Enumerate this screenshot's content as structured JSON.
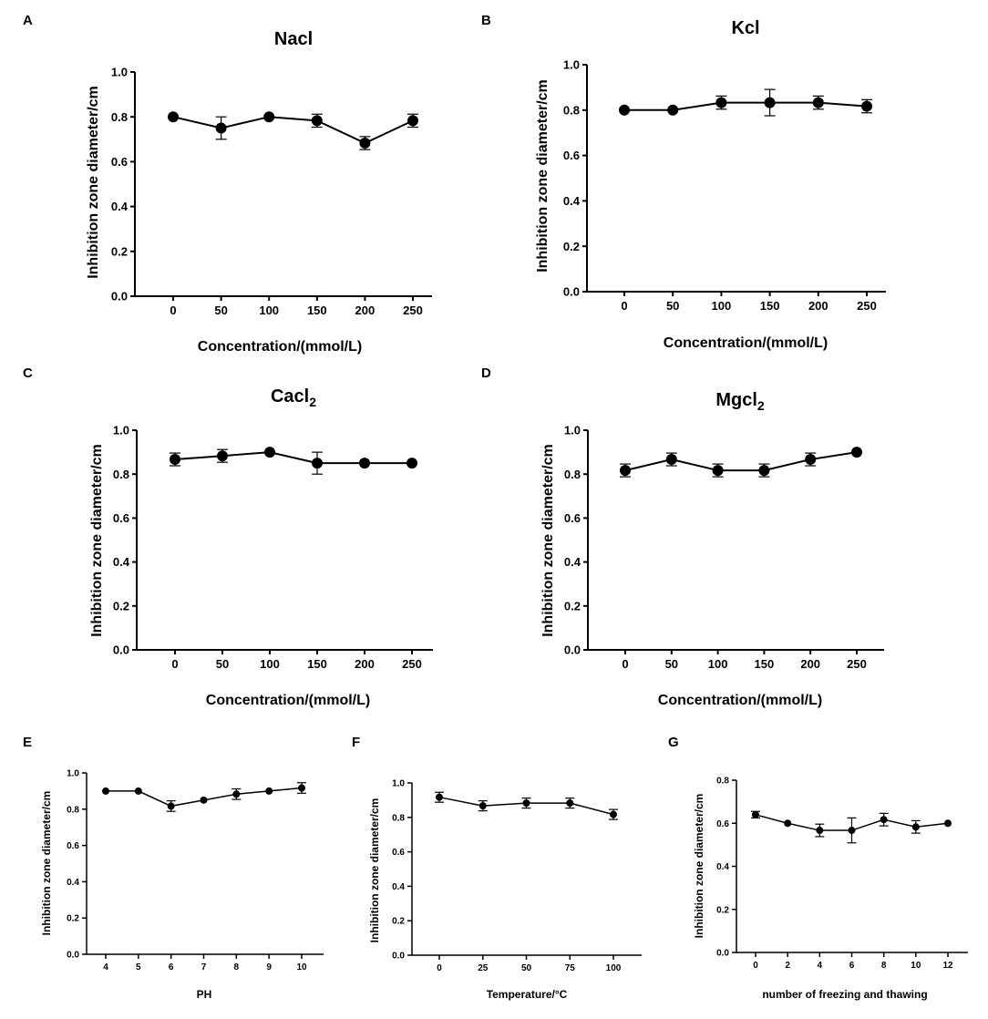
{
  "chart_data": [
    {
      "id": "A",
      "type": "line",
      "panel_label": "A",
      "title": "Nacl",
      "title_sub": "",
      "xlabel": "Concentration/(mmol/L)",
      "ylabel": "Inhibition zone diameter/cm",
      "x": [
        0,
        50,
        100,
        150,
        200,
        250
      ],
      "x_tick_labels": [
        "0",
        "50",
        "100",
        "150",
        "200",
        "250"
      ],
      "y": [
        0.8,
        0.75,
        0.8,
        0.783,
        0.683,
        0.783
      ],
      "error": [
        0,
        0.05,
        0,
        0.029,
        0.029,
        0.029
      ],
      "y_ticks": [
        "0.0",
        "0.2",
        "0.4",
        "0.6",
        "0.8",
        "1.0"
      ],
      "ylim": [
        0,
        1.0
      ]
    },
    {
      "id": "B",
      "type": "line",
      "panel_label": "B",
      "title": "Kcl",
      "title_sub": "",
      "xlabel": "Concentration/(mmol/L)",
      "ylabel": "Inhibition zone diameter/cm",
      "x": [
        0,
        50,
        100,
        150,
        200,
        250
      ],
      "x_tick_labels": [
        "0",
        "50",
        "100",
        "150",
        "200",
        "250"
      ],
      "y": [
        0.8,
        0.8,
        0.833,
        0.833,
        0.833,
        0.817
      ],
      "error": [
        0,
        0,
        0.029,
        0.058,
        0.029,
        0.029
      ],
      "y_ticks": [
        "0.0",
        "0.2",
        "0.4",
        "0.6",
        "0.8",
        "1.0"
      ],
      "ylim": [
        0,
        1.0
      ]
    },
    {
      "id": "C",
      "type": "line",
      "panel_label": "C",
      "title": "Cacl",
      "title_sub": "2",
      "xlabel": "Concentration/(mmol/L)",
      "ylabel": "Inhibition zone diameter/cm",
      "x": [
        0,
        50,
        100,
        150,
        200,
        250
      ],
      "x_tick_labels": [
        "0",
        "50",
        "100",
        "150",
        "200",
        "250"
      ],
      "y": [
        0.867,
        0.883,
        0.9,
        0.85,
        0.85,
        0.85
      ],
      "error": [
        0.029,
        0.029,
        0,
        0.05,
        0,
        0
      ],
      "y_ticks": [
        "0.0",
        "0.2",
        "0.4",
        "0.6",
        "0.8",
        "1.0"
      ],
      "ylim": [
        0,
        1.0
      ]
    },
    {
      "id": "D",
      "type": "line",
      "panel_label": "D",
      "title": "Mgcl",
      "title_sub": "2",
      "xlabel": "Concentration/(mmol/L)",
      "ylabel": "Inhibition zone diameter/cm",
      "x": [
        0,
        50,
        100,
        150,
        200,
        250
      ],
      "x_tick_labels": [
        "0",
        "50",
        "100",
        "150",
        "200",
        "250"
      ],
      "y": [
        0.817,
        0.867,
        0.817,
        0.817,
        0.867,
        0.9
      ],
      "error": [
        0.029,
        0.029,
        0.029,
        0.029,
        0.029,
        0
      ],
      "y_ticks": [
        "0.0",
        "0.2",
        "0.4",
        "0.6",
        "0.8",
        "1.0"
      ],
      "ylim": [
        0,
        1.0
      ]
    },
    {
      "id": "E",
      "type": "line",
      "panel_label": "E",
      "title": "",
      "title_sub": "",
      "xlabel": "PH",
      "ylabel": "Inhibition zone diameter/cm",
      "x": [
        4,
        5,
        6,
        7,
        8,
        9,
        10
      ],
      "x_tick_labels": [
        "4",
        "5",
        "6",
        "7",
        "8",
        "9",
        "10"
      ],
      "y": [
        0.9,
        0.9,
        0.817,
        0.85,
        0.883,
        0.9,
        0.917
      ],
      "error": [
        0,
        0,
        0.029,
        0,
        0.029,
        0,
        0.029
      ],
      "y_ticks": [
        "0.0",
        "0.2",
        "0.4",
        "0.6",
        "0.8",
        "1.0"
      ],
      "ylim": [
        0,
        1.0
      ]
    },
    {
      "id": "F",
      "type": "line",
      "panel_label": "F",
      "title": "",
      "title_sub": "",
      "xlabel": "Temperature/°C",
      "ylabel": "Inhibition zone diameter/cm",
      "x": [
        0,
        25,
        50,
        75,
        100
      ],
      "x_tick_labels": [
        "0",
        "25",
        "50",
        "75",
        "100"
      ],
      "y": [
        0.917,
        0.867,
        0.883,
        0.883,
        0.817
      ],
      "error": [
        0.029,
        0.029,
        0.029,
        0.029,
        0.029
      ],
      "y_ticks": [
        "0.0",
        "0.2",
        "0.4",
        "0.6",
        "0.8",
        "1.0"
      ],
      "ylim": [
        0,
        1.0
      ]
    },
    {
      "id": "G",
      "type": "line",
      "panel_label": "G",
      "title": "",
      "title_sub": "",
      "xlabel": "number of freezing and thawing",
      "ylabel": "Inhibition zone diameter/cm",
      "x": [
        0,
        2,
        4,
        6,
        8,
        10,
        12
      ],
      "x_tick_labels": [
        "0",
        "2",
        "4",
        "6",
        "8",
        "10",
        "12"
      ],
      "y": [
        0.64,
        0.6,
        0.567,
        0.567,
        0.617,
        0.583,
        0.6
      ],
      "error": [
        0.015,
        0,
        0.029,
        0.058,
        0.029,
        0.029,
        0
      ],
      "y_ticks": [
        "0.0",
        "0.2",
        "0.4",
        "0.6",
        "0.8"
      ],
      "ylim": [
        0,
        0.8
      ]
    }
  ]
}
